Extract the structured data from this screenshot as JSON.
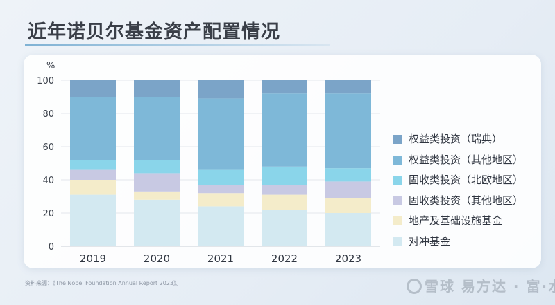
{
  "title": "近年诺贝尔基金资产配置情况",
  "source": "资料来源：《The Nobel Foundation Annual Report 2023》。",
  "watermark": "雪球 易方达 · 富·水猫",
  "chart_data": {
    "type": "bar",
    "stacked": true,
    "ylabel": "%",
    "ylim": [
      0,
      100
    ],
    "yticks": [
      0,
      20,
      40,
      60,
      80,
      100
    ],
    "categories": [
      "2019",
      "2020",
      "2021",
      "2022",
      "2023"
    ],
    "grid": true,
    "legend_position": "right",
    "series": [
      {
        "name": "对冲基金",
        "color": "#d3e9f1",
        "values": [
          31,
          28,
          24,
          22,
          20
        ]
      },
      {
        "name": "地产及基础设施基金",
        "color": "#f4ecca",
        "values": [
          9,
          5,
          8,
          9,
          9
        ]
      },
      {
        "name": "固收类投资（其他地区）",
        "color": "#c8c9e3",
        "values": [
          6,
          11,
          5,
          6,
          10
        ]
      },
      {
        "name": "固收类投资（北欧地区）",
        "color": "#8ad5ea",
        "values": [
          6,
          8,
          9,
          11,
          8
        ]
      },
      {
        "name": "权益类投资（其他地区）",
        "color": "#7eb8d8",
        "values": [
          38,
          38,
          43,
          44,
          45
        ]
      },
      {
        "name": "权益类投资（瑞典）",
        "color": "#7ba4c8",
        "values": [
          10,
          10,
          11,
          8,
          8
        ]
      }
    ]
  }
}
